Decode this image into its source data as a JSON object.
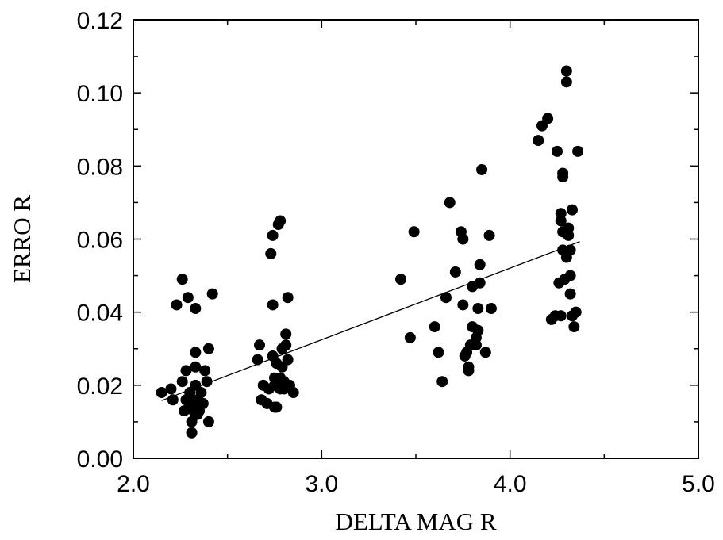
{
  "chart_data": {
    "type": "scatter",
    "title": "",
    "xlabel": "DELTA MAG R",
    "ylabel": "ERRO R",
    "xlim": [
      2.0,
      5.0
    ],
    "ylim": [
      0.0,
      0.12
    ],
    "x_ticks": [
      "2.0",
      "3.0",
      "4.0",
      "5.0"
    ],
    "y_ticks": [
      "0.00",
      "0.02",
      "0.04",
      "0.06",
      "0.08",
      "0.10",
      "0.12"
    ],
    "grid": false,
    "legend": "none",
    "marker_color": "#000000",
    "points": [
      [
        2.15,
        0.018
      ],
      [
        2.2,
        0.019
      ],
      [
        2.21,
        0.016
      ],
      [
        2.23,
        0.042
      ],
      [
        2.26,
        0.049
      ],
      [
        2.26,
        0.021
      ],
      [
        2.27,
        0.013
      ],
      [
        2.28,
        0.024
      ],
      [
        2.28,
        0.016
      ],
      [
        2.29,
        0.044
      ],
      [
        2.3,
        0.018
      ],
      [
        2.3,
        0.014
      ],
      [
        2.31,
        0.007
      ],
      [
        2.31,
        0.01
      ],
      [
        2.31,
        0.016
      ],
      [
        2.32,
        0.013
      ],
      [
        2.33,
        0.02
      ],
      [
        2.33,
        0.015
      ],
      [
        2.33,
        0.025
      ],
      [
        2.33,
        0.041
      ],
      [
        2.33,
        0.029
      ],
      [
        2.34,
        0.012
      ],
      [
        2.34,
        0.016
      ],
      [
        2.35,
        0.013
      ],
      [
        2.36,
        0.018
      ],
      [
        2.37,
        0.015
      ],
      [
        2.38,
        0.024
      ],
      [
        2.39,
        0.021
      ],
      [
        2.4,
        0.03
      ],
      [
        2.4,
        0.01
      ],
      [
        2.42,
        0.045
      ],
      [
        2.66,
        0.027
      ],
      [
        2.67,
        0.031
      ],
      [
        2.68,
        0.016
      ],
      [
        2.69,
        0.02
      ],
      [
        2.71,
        0.015
      ],
      [
        2.72,
        0.019
      ],
      [
        2.73,
        0.056
      ],
      [
        2.74,
        0.061
      ],
      [
        2.74,
        0.028
      ],
      [
        2.74,
        0.042
      ],
      [
        2.75,
        0.014
      ],
      [
        2.75,
        0.02
      ],
      [
        2.75,
        0.022
      ],
      [
        2.76,
        0.014
      ],
      [
        2.76,
        0.026
      ],
      [
        2.77,
        0.064
      ],
      [
        2.78,
        0.065
      ],
      [
        2.78,
        0.019
      ],
      [
        2.78,
        0.022
      ],
      [
        2.79,
        0.025
      ],
      [
        2.79,
        0.03
      ],
      [
        2.8,
        0.019
      ],
      [
        2.8,
        0.021
      ],
      [
        2.81,
        0.031
      ],
      [
        2.81,
        0.034
      ],
      [
        2.82,
        0.027
      ],
      [
        2.82,
        0.044
      ],
      [
        2.83,
        0.02
      ],
      [
        2.85,
        0.018
      ],
      [
        3.42,
        0.049
      ],
      [
        3.47,
        0.033
      ],
      [
        3.49,
        0.062
      ],
      [
        3.6,
        0.036
      ],
      [
        3.62,
        0.029
      ],
      [
        3.64,
        0.021
      ],
      [
        3.66,
        0.044
      ],
      [
        3.68,
        0.07
      ],
      [
        3.71,
        0.051
      ],
      [
        3.74,
        0.062
      ],
      [
        3.75,
        0.06
      ],
      [
        3.75,
        0.042
      ],
      [
        3.76,
        0.028
      ],
      [
        3.77,
        0.029
      ],
      [
        3.78,
        0.024
      ],
      [
        3.78,
        0.025
      ],
      [
        3.79,
        0.031
      ],
      [
        3.8,
        0.036
      ],
      [
        3.8,
        0.047
      ],
      [
        3.82,
        0.033
      ],
      [
        3.82,
        0.031
      ],
      [
        3.83,
        0.035
      ],
      [
        3.83,
        0.041
      ],
      [
        3.84,
        0.048
      ],
      [
        3.84,
        0.053
      ],
      [
        3.85,
        0.079
      ],
      [
        3.87,
        0.029
      ],
      [
        3.89,
        0.061
      ],
      [
        3.9,
        0.041
      ],
      [
        4.15,
        0.087
      ],
      [
        4.17,
        0.091
      ],
      [
        4.2,
        0.093
      ],
      [
        4.22,
        0.038
      ],
      [
        4.24,
        0.039
      ],
      [
        4.25,
        0.084
      ],
      [
        4.26,
        0.048
      ],
      [
        4.27,
        0.039
      ],
      [
        4.27,
        0.065
      ],
      [
        4.27,
        0.067
      ],
      [
        4.28,
        0.057
      ],
      [
        4.28,
        0.062
      ],
      [
        4.28,
        0.078
      ],
      [
        4.28,
        0.077
      ],
      [
        4.29,
        0.049
      ],
      [
        4.3,
        0.103
      ],
      [
        4.3,
        0.106
      ],
      [
        4.3,
        0.055
      ],
      [
        4.31,
        0.061
      ],
      [
        4.31,
        0.063
      ],
      [
        4.32,
        0.045
      ],
      [
        4.32,
        0.05
      ],
      [
        4.32,
        0.057
      ],
      [
        4.33,
        0.068
      ],
      [
        4.33,
        0.039
      ],
      [
        4.34,
        0.036
      ],
      [
        4.35,
        0.04
      ],
      [
        4.36,
        0.084
      ]
    ],
    "fit_line": {
      "x": [
        2.15,
        4.37
      ],
      "y": [
        0.0158,
        0.0593
      ]
    }
  }
}
